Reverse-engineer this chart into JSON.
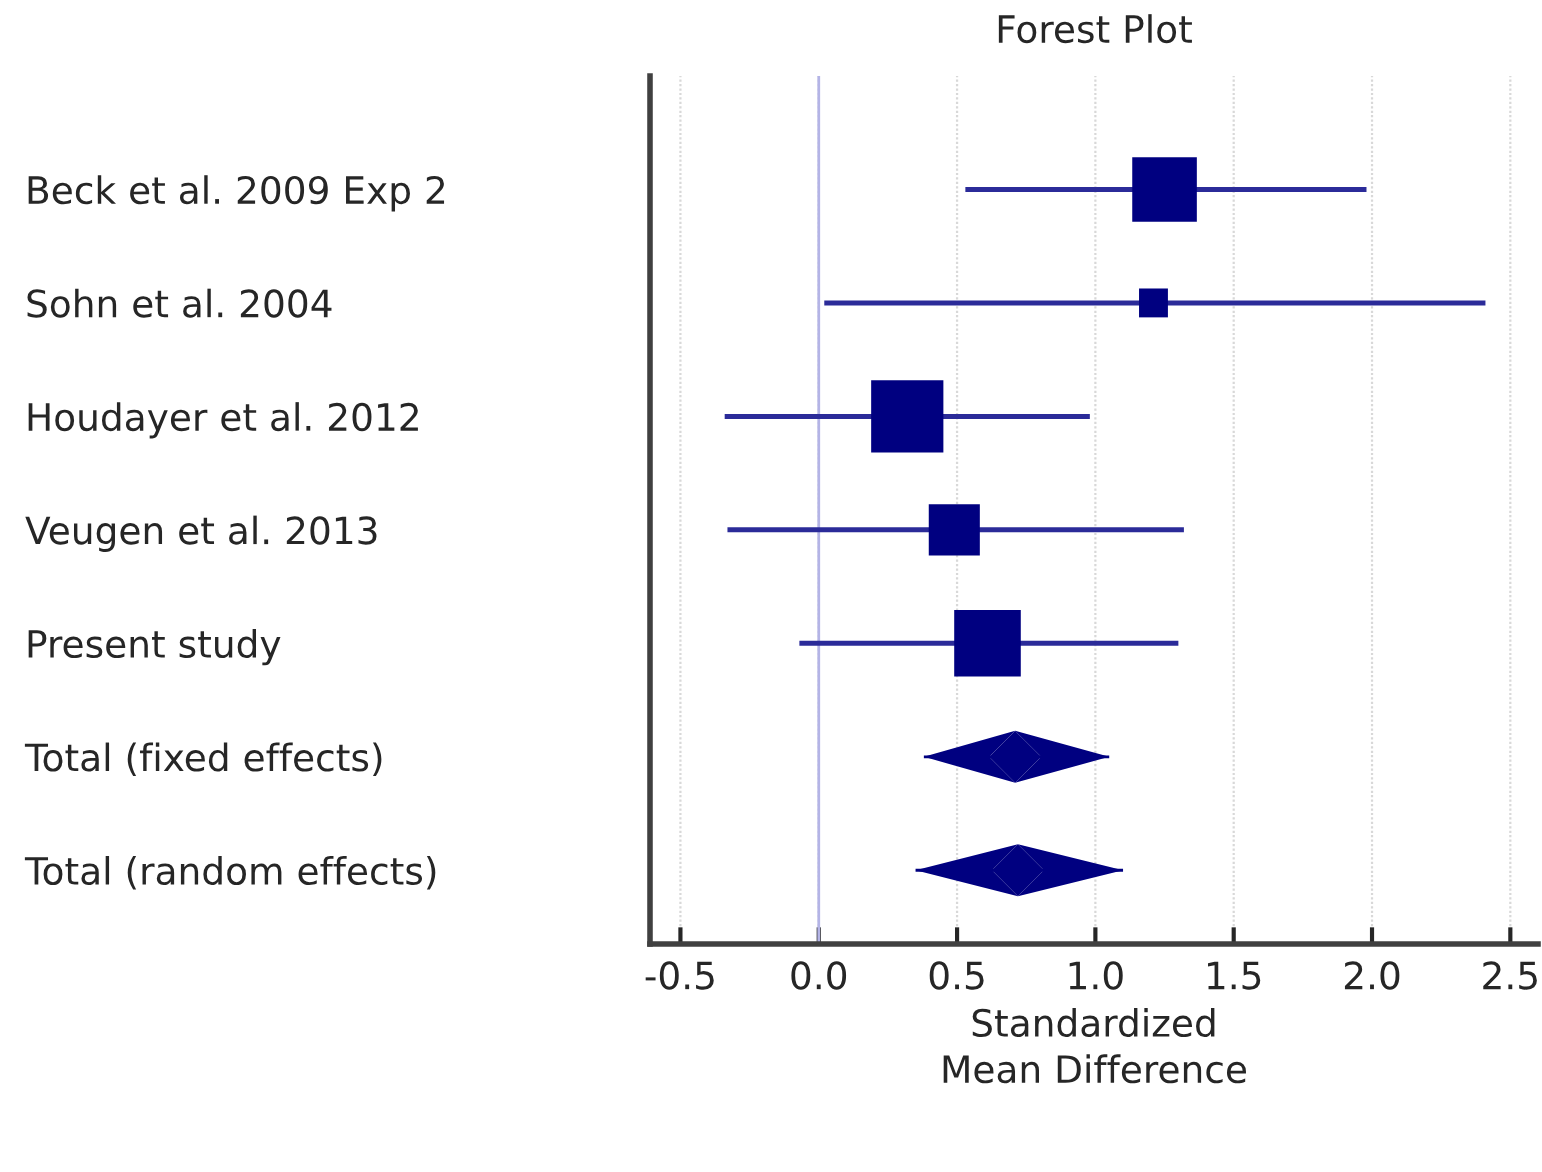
{
  "chart_data": {
    "type": "scatter",
    "orientation": "horizontal",
    "title": "Forest Plot",
    "xlabel": "Standardized\nMean Difference",
    "categories": [
      "Beck et al. 2009 Exp 2",
      "Sohn et al. 2004",
      "Houdayer et al. 2012",
      "Veugen et al. 2013",
      "Present study",
      "Total (fixed effects)",
      "Total (random effects)"
    ],
    "series": [
      {
        "type": "scatter",
        "marker": "square",
        "color": "#000080",
        "values": [
          1.25,
          1.21,
          0.32,
          0.49,
          0.61,
          null,
          null
        ],
        "errors": [
          [
            0.53,
            1.98
          ],
          [
            0.02,
            2.41
          ],
          [
            -0.34,
            0.98
          ],
          [
            -0.33,
            1.32
          ],
          [
            -0.07,
            1.3
          ],
          null,
          null
        ],
        "sizes": [
          0.8,
          0.16,
          1,
          0.5,
          0.85,
          null,
          null
        ]
      },
      {
        "type": "scatter",
        "marker": "diamond",
        "color": "#000080",
        "values": [
          null,
          null,
          null,
          null,
          null,
          0.71,
          0.72
        ],
        "errors": [
          null,
          null,
          null,
          null,
          null,
          [
            0.38,
            1.05
          ],
          [
            0.35,
            1.1
          ]
        ]
      }
    ],
    "xlim": [
      -0.61,
      2.6
    ],
    "xticks": [
      {
        "value": -0.5,
        "label": "-0.5"
      },
      {
        "value": 0,
        "label": "0.0"
      },
      {
        "value": 0.5,
        "label": "0.5"
      },
      {
        "value": 1,
        "label": "1.0"
      },
      {
        "value": 1.5,
        "label": "1.5"
      },
      {
        "value": 2,
        "label": "2.0"
      },
      {
        "value": 2.5,
        "label": "2.5"
      }
    ],
    "ref_lines": [
      {
        "axis": "x",
        "value": 0,
        "color": "#b4b4e6"
      }
    ],
    "grid": "x",
    "legend": false
  }
}
